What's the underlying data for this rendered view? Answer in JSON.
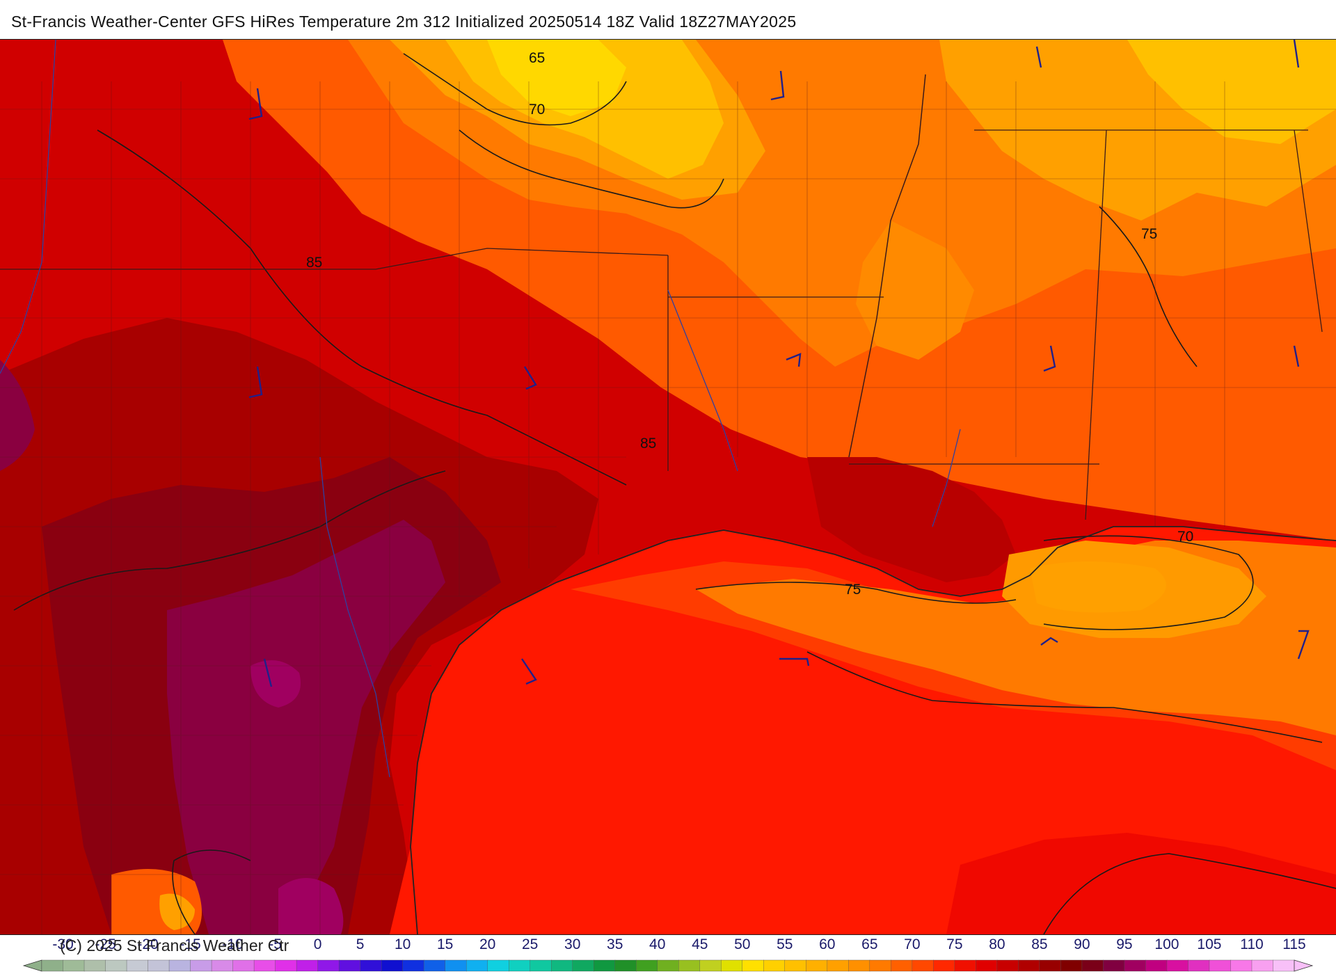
{
  "header": {
    "title": "St-Francis Weather-Center GFS HiRes Temperature 2m  312 Initialized 20250514 18Z Valid 18Z27MAY2025"
  },
  "map": {
    "contour_labels": [
      "65",
      "70",
      "85",
      "85",
      "75",
      "70",
      "75"
    ],
    "colors": {
      "gulf_red": "#ff1800",
      "deep_red": "#c80000",
      "dark_red": "#980000",
      "maroon": "#7a0030",
      "magenta": "#a00060",
      "orange_red": "#ff3c00",
      "orange": "#ff7a00",
      "light_orange": "#ffa000",
      "yellow_orange": "#ffc000",
      "yellow": "#ffe000",
      "contour": "#1a1a1a",
      "border": "#3a1a1a",
      "river": "#3040a0",
      "wind_barb": "#20208a"
    }
  },
  "legend": {
    "copyright": "(C) 2025 St Francis Weather Ctr",
    "scale_values": [
      "-30",
      "-25",
      "-20",
      "-15",
      "-10",
      "-5",
      "0",
      "5",
      "10",
      "15",
      "20",
      "25",
      "30",
      "35",
      "40",
      "45",
      "50",
      "55",
      "60",
      "65",
      "70",
      "75",
      "80",
      "85",
      "90",
      "95",
      "100",
      "105",
      "110",
      "115"
    ],
    "scale_colors": [
      "#8fb08a",
      "#9fbb98",
      "#aebfaa",
      "#bcc8c0",
      "#c6cad4",
      "#c3c3d8",
      "#b9b4e0",
      "#c89ce8",
      "#d88ae8",
      "#e070e8",
      "#e84ee8",
      "#e030e8",
      "#c020e8",
      "#9018e8",
      "#6010e0",
      "#3010d8",
      "#1010d0",
      "#1030e0",
      "#1060e8",
      "#1090f0",
      "#10b0f0",
      "#10d0e0",
      "#10d0c0",
      "#10c8a0",
      "#10b880",
      "#10a860",
      "#109840",
      "#209028",
      "#40a020",
      "#70b020",
      "#98c020",
      "#c0d020",
      "#e0e000",
      "#ffe000",
      "#ffd000",
      "#ffc000",
      "#ffb000",
      "#ffa000",
      "#ff9000",
      "#ff7a00",
      "#ff6000",
      "#ff4800",
      "#ff2800",
      "#f01000",
      "#e00000",
      "#c80000",
      "#b00000",
      "#980000",
      "#800000",
      "#7a0018",
      "#800040",
      "#a00060",
      "#c00080",
      "#d810a0",
      "#e030c0",
      "#f050d8",
      "#f878e8",
      "#f8a0f0",
      "#f8c0f8"
    ]
  }
}
